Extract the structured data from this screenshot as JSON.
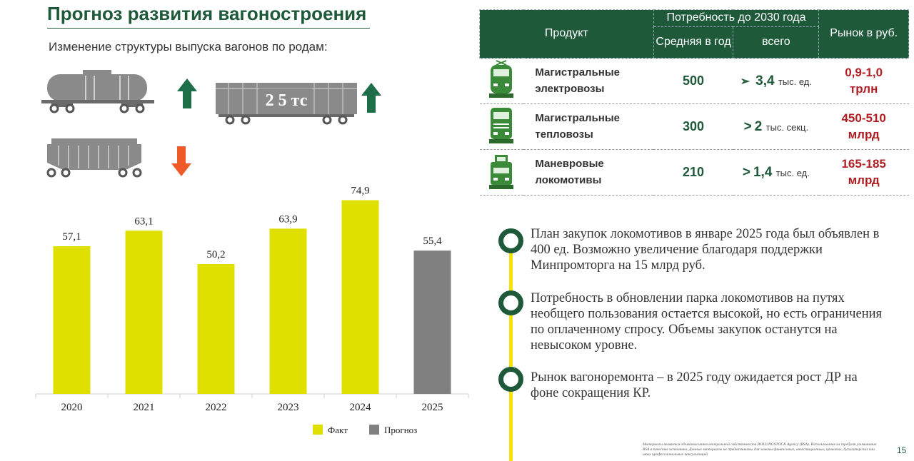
{
  "header": {
    "title": "Прогноз развития вагоностроения",
    "subtitle": "Изменение структуры выпуска вагонов по родам:"
  },
  "wagons": {
    "gondola_label": "2 5 тс"
  },
  "colors": {
    "accent": "#1e5a3a",
    "fact": "#e0e000",
    "forecast": "#808080",
    "arrow_up": "#1e6e4a",
    "arrow_down": "#f05a28",
    "market": "#b01e23",
    "timeline": "#f2e300"
  },
  "chart_data": {
    "type": "bar",
    "categories": [
      "2020",
      "2021",
      "2022",
      "2023",
      "2024",
      "2025"
    ],
    "values": [
      57.1,
      63.1,
      50.2,
      63.9,
      74.9,
      55.4
    ],
    "value_labels": [
      "57,1",
      "63,1",
      "50,2",
      "63,9",
      "74,9",
      "55,4"
    ],
    "kinds": [
      "fact",
      "fact",
      "fact",
      "fact",
      "fact",
      "forecast"
    ],
    "legend": [
      {
        "key": "fact",
        "label": "Факт"
      },
      {
        "key": "forecast",
        "label": "Прогноз"
      }
    ],
    "legend_position": "bottom",
    "ylim": [
      0,
      80
    ],
    "grid": false
  },
  "table": {
    "col_product": "Продукт",
    "col_need": "Потребность до 2030 года",
    "col_avg": "Средняя в год",
    "col_total": "всего",
    "col_market": "Рынок в руб.",
    "rows": [
      {
        "line1": "Магистральные",
        "line2": "электровозы",
        "avg": "500",
        "total_prefix": "➢",
        "total_value": "3,4",
        "total_unit": "тыс. ед.",
        "market1": "0,9-1,0",
        "market2": "трлн",
        "icon": "electric-locomotive-icon"
      },
      {
        "line1": "Магистральные",
        "line2": "тепловозы",
        "avg": "300",
        "total_prefix": ">",
        "total_value": "2",
        "total_unit": "тыс. секц.",
        "market1": "450-510",
        "market2": "млрд",
        "icon": "diesel-locomotive-icon"
      },
      {
        "line1": "Маневровые",
        "line2": "локомотивы",
        "avg": "210",
        "total_prefix": ">",
        "total_value": "1,4",
        "total_unit": "тыс. ед.",
        "market1": "165-185",
        "market2": "млрд",
        "icon": "shunting-locomotive-icon"
      }
    ]
  },
  "bullets": [
    "План закупок локомотивов в январе 2025 года был объявлен в 400 ед. Возможно увеличение благодаря поддержки Минпромторга на 15 млрд руб.",
    "Потребность в обновлении парка локомотивов на путях необщего пользования остается высокой, но есть ограничения по оплаченному спросу. Объемы закупок останутся на невысоком уровне.",
    "Рынок вагоноремонта – в 2025 году ожидается рост ДР на фоне сокращения КР."
  ],
  "footer": {
    "note": "Материалы являются объектом интеллектуальной собственности ROLLINGSTOCK Agency (RSA). Использование их требует упоминание RSA в качестве источника. Данные материалы не предназначены для замены финансовых, инвестиционных, правовых, бухгалтерских или иных профессиональных консультаций",
    "page": "15"
  }
}
